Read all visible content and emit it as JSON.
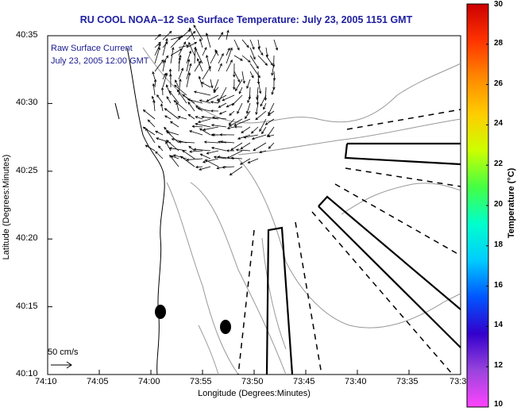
{
  "title": "RU COOL  NOAA–12  Sea Surface Temperature:  July 23, 2005 1151 GMT",
  "annotation": {
    "line1": "Raw Surface Current",
    "line2": "July 23, 2005 12:00 GMT"
  },
  "scale_label": "50 cm/s",
  "axes": {
    "xlabel": "Longitude (Degrees:Minutes)",
    "ylabel": "Latitude (Degrees:Minutes)",
    "xticks": [
      "74:10",
      "74:05",
      "74:00",
      "73:55",
      "73:50",
      "73:45",
      "73:40",
      "73:35",
      "73:3"
    ],
    "yticks": [
      "40:35",
      "40:30",
      "40:25",
      "40:20",
      "40:15",
      "40:10"
    ]
  },
  "colorbar": {
    "title": "Temperature (°C)",
    "ticks": [
      "30",
      "28",
      "26",
      "24",
      "22",
      "20",
      "18",
      "16",
      "14",
      "12",
      "10"
    ],
    "colors": [
      "#cc0000",
      "#ff3300",
      "#ff8800",
      "#ffcc00",
      "#ccff00",
      "#44ff44",
      "#00ffcc",
      "#00ccff",
      "#0055ff",
      "#3300cc",
      "#9944dd",
      "#ff44ff"
    ]
  }
}
